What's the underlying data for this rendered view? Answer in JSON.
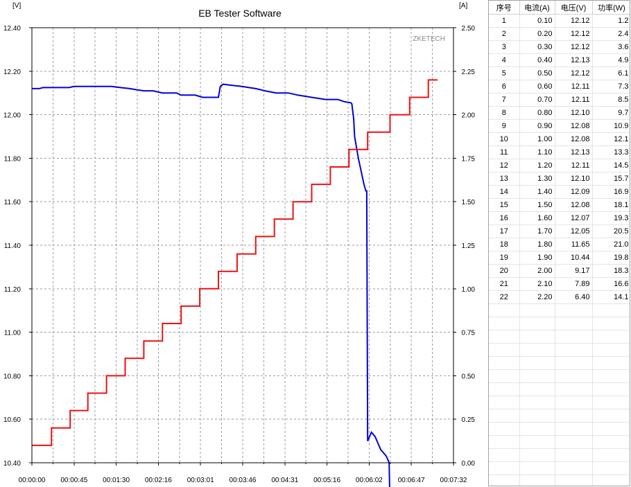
{
  "chart_data": {
    "type": "line",
    "title": "EB Tester Software",
    "watermark": "ZKETECH",
    "ylabel_left": "[V]",
    "ylabel_right": "[A]",
    "ylim_left": [
      10.4,
      12.4
    ],
    "ylim_right": [
      0.0,
      2.5
    ],
    "xlim_seconds": [
      0,
      452
    ],
    "x_ticks": [
      "00:00:00",
      "00:00:45",
      "00:01:30",
      "00:02:16",
      "00:03:01",
      "00:03:46",
      "00:04:31",
      "00:05:16",
      "00:06:02",
      "00:06:47",
      "00:07:32"
    ],
    "y_ticks_left": [
      "10.40",
      "10.60",
      "10.80",
      "11.00",
      "11.20",
      "11.40",
      "11.60",
      "11.80",
      "12.00",
      "12.20",
      "12.40"
    ],
    "y_ticks_right": [
      "0.00",
      "0.25",
      "0.50",
      "0.75",
      "1.00",
      "1.25",
      "1.50",
      "1.75",
      "2.00",
      "2.25",
      "2.50"
    ],
    "grid": true,
    "colors": {
      "voltage": "#0000dd",
      "current": "#ee1111",
      "grid": "#9a9a9a"
    },
    "series": [
      {
        "axis": "left",
        "points": [
          [
            0,
            12.12
          ],
          [
            8,
            12.12
          ],
          [
            12,
            12.125
          ],
          [
            40,
            12.125
          ],
          [
            45,
            12.13
          ],
          [
            85,
            12.13
          ],
          [
            95,
            12.125
          ],
          [
            105,
            12.12
          ],
          [
            112,
            12.115
          ],
          [
            120,
            12.11
          ],
          [
            130,
            12.11
          ],
          [
            140,
            12.1
          ],
          [
            155,
            12.1
          ],
          [
            160,
            12.09
          ],
          [
            175,
            12.09
          ],
          [
            183,
            12.08
          ],
          [
            200,
            12.08
          ],
          [
            202,
            12.13
          ],
          [
            205,
            12.14
          ],
          [
            215,
            12.135
          ],
          [
            225,
            12.13
          ],
          [
            240,
            12.12
          ],
          [
            250,
            12.11
          ],
          [
            262,
            12.1
          ],
          [
            275,
            12.1
          ],
          [
            285,
            12.09
          ],
          [
            300,
            12.08
          ],
          [
            315,
            12.07
          ],
          [
            328,
            12.07
          ],
          [
            335,
            12.06
          ],
          [
            342,
            12.055
          ],
          [
            343,
            12.05
          ],
          [
            345,
            11.98
          ],
          [
            346,
            11.9
          ],
          [
            348,
            11.85
          ],
          [
            350,
            11.8
          ],
          [
            352,
            11.76
          ],
          [
            354,
            11.72
          ],
          [
            356,
            11.68
          ],
          [
            358,
            11.65
          ],
          [
            359,
            11.65
          ],
          [
            360,
            10.5
          ],
          [
            362,
            10.52
          ],
          [
            364,
            10.54
          ],
          [
            366,
            10.53
          ],
          [
            368,
            10.52
          ],
          [
            370,
            10.5
          ],
          [
            372,
            10.48
          ],
          [
            374,
            10.46
          ],
          [
            376,
            10.45
          ],
          [
            378,
            10.44
          ],
          [
            380,
            10.43
          ],
          [
            383,
            10.4
          ],
          [
            384,
            10.2
          ]
        ]
      },
      {
        "axis": "right",
        "points": [
          [
            0,
            0.1
          ],
          [
            21,
            0.1
          ],
          [
            21,
            0.2
          ],
          [
            41,
            0.2
          ],
          [
            41,
            0.3
          ],
          [
            60,
            0.3
          ],
          [
            60,
            0.4
          ],
          [
            80,
            0.4
          ],
          [
            80,
            0.5
          ],
          [
            100,
            0.5
          ],
          [
            100,
            0.6
          ],
          [
            120,
            0.6
          ],
          [
            120,
            0.7
          ],
          [
            140,
            0.7
          ],
          [
            140,
            0.8
          ],
          [
            160,
            0.8
          ],
          [
            160,
            0.9
          ],
          [
            180,
            0.9
          ],
          [
            180,
            1.0
          ],
          [
            200,
            1.0
          ],
          [
            200,
            1.1
          ],
          [
            220,
            1.1
          ],
          [
            220,
            1.2
          ],
          [
            240,
            1.2
          ],
          [
            240,
            1.3
          ],
          [
            260,
            1.3
          ],
          [
            260,
            1.4
          ],
          [
            280,
            1.4
          ],
          [
            280,
            1.5
          ],
          [
            300,
            1.5
          ],
          [
            300,
            1.6
          ],
          [
            320,
            1.6
          ],
          [
            320,
            1.7
          ],
          [
            340,
            1.7
          ],
          [
            340,
            1.8
          ],
          [
            360,
            1.8
          ],
          [
            360,
            1.9
          ],
          [
            384,
            1.9
          ],
          [
            384,
            2.0
          ],
          [
            405,
            2.0
          ],
          [
            405,
            2.1
          ],
          [
            425,
            2.1
          ],
          [
            425,
            2.2
          ],
          [
            435,
            2.2
          ]
        ]
      }
    ]
  },
  "table": {
    "headers": [
      "序号",
      "电流(A)",
      "电压(V)",
      "功率(W)"
    ],
    "rows": [
      [
        "1",
        "0.10",
        "12.12",
        "1.2"
      ],
      [
        "2",
        "0.20",
        "12.12",
        "2.4"
      ],
      [
        "3",
        "0.30",
        "12.12",
        "3.6"
      ],
      [
        "4",
        "0.40",
        "12.13",
        "4.9"
      ],
      [
        "5",
        "0.50",
        "12.12",
        "6.1"
      ],
      [
        "6",
        "0.60",
        "12.11",
        "7.3"
      ],
      [
        "7",
        "0.70",
        "12.11",
        "8.5"
      ],
      [
        "8",
        "0.80",
        "12.10",
        "9.7"
      ],
      [
        "9",
        "0.90",
        "12.08",
        "10.9"
      ],
      [
        "10",
        "1.00",
        "12.08",
        "12.1"
      ],
      [
        "11",
        "1.10",
        "12.13",
        "13.3"
      ],
      [
        "12",
        "1.20",
        "12.11",
        "14.5"
      ],
      [
        "13",
        "1.30",
        "12.10",
        "15.7"
      ],
      [
        "14",
        "1.40",
        "12.09",
        "16.9"
      ],
      [
        "15",
        "1.50",
        "12.08",
        "18.1"
      ],
      [
        "16",
        "1.60",
        "12.07",
        "19.3"
      ],
      [
        "17",
        "1.70",
        "12.05",
        "20.5"
      ],
      [
        "18",
        "1.80",
        "11.65",
        "21.0"
      ],
      [
        "19",
        "1.90",
        "10.44",
        "19.8"
      ],
      [
        "20",
        "2.00",
        "9.17",
        "18.3"
      ],
      [
        "21",
        "2.10",
        "7.89",
        "16.6"
      ],
      [
        "22",
        "2.20",
        "6.40",
        "14.1"
      ]
    ],
    "empty_rows": 14
  }
}
